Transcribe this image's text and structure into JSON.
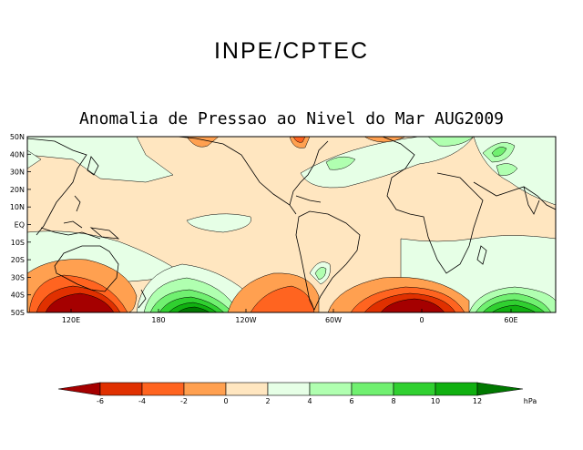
{
  "organization": "INPE/CPTEC",
  "title": "Anomalia de Pressao ao Nivel do Mar AUG2009",
  "lat_labels": [
    "50N",
    "40N",
    "30N",
    "20N",
    "10N",
    "EQ",
    "10S",
    "20S",
    "30S",
    "40S",
    "50S"
  ],
  "lon_labels": [
    "120E",
    "180",
    "120W",
    "60W",
    "0",
    "60E"
  ],
  "colorbar": {
    "unit": "hPa",
    "ticks": [
      "-6",
      "-4",
      "-2",
      "0",
      "2",
      "4",
      "6",
      "8",
      "10",
      "12"
    ],
    "colors": [
      "#a50000",
      "#e03000",
      "#ff6420",
      "#ffa050",
      "#ffe6c0",
      "#e6ffe6",
      "#b0ffb0",
      "#70f070",
      "#30d030",
      "#10b010",
      "#007800",
      "#005000"
    ]
  },
  "legend_range": [
    "-6",
    "12"
  ]
}
